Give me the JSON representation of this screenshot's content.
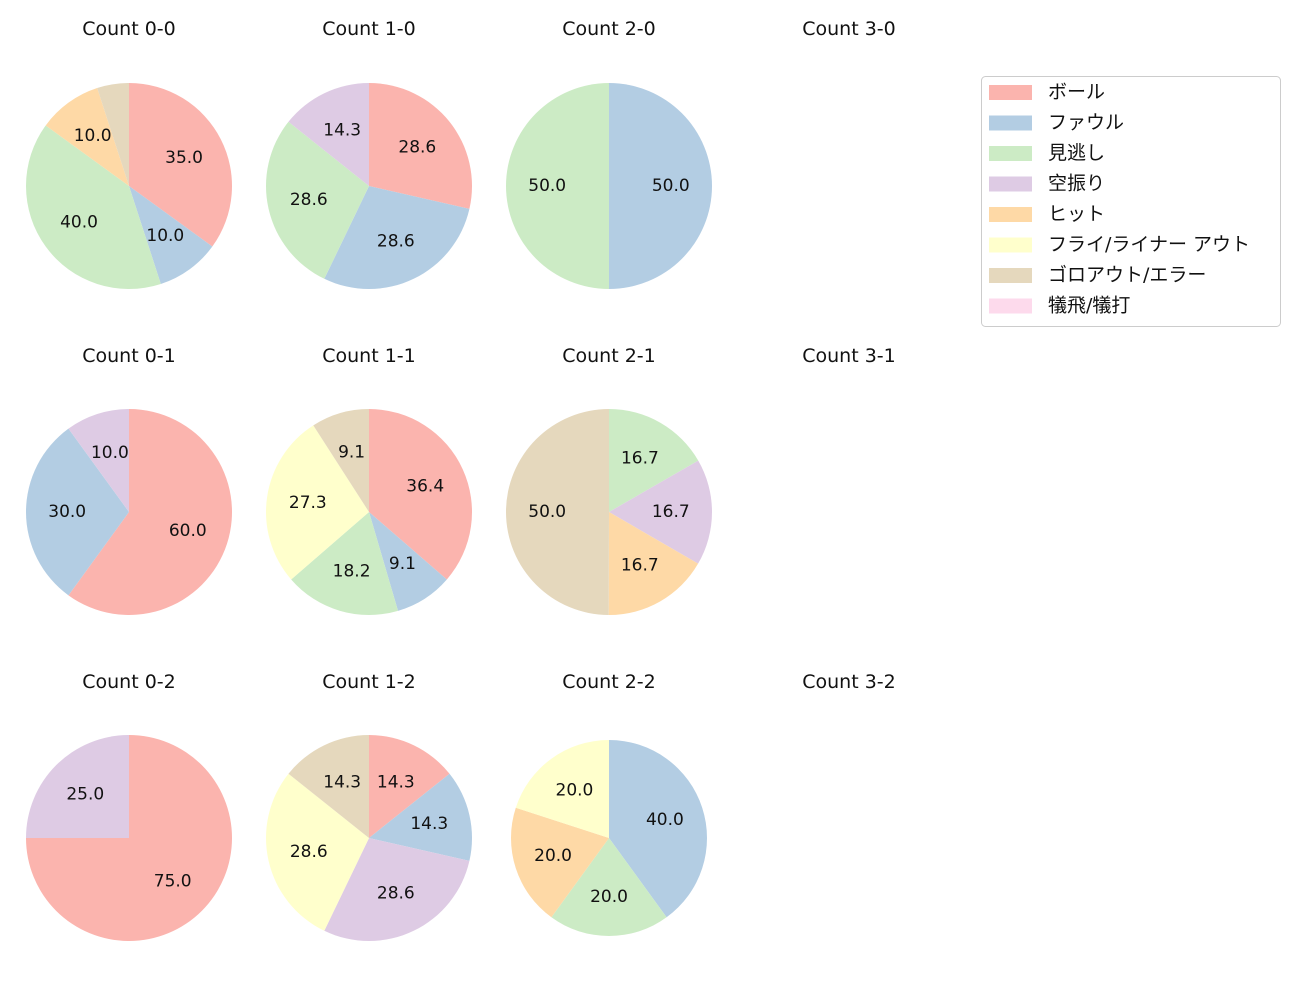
{
  "chart_data": {
    "type": "pie",
    "categories": [
      "ボール",
      "ファウル",
      "見逃し",
      "空振り",
      "ヒット",
      "フライ/ライナー アウト",
      "ゴロアウト/エラー",
      "犠飛/犠打"
    ],
    "colors": [
      "#fbb4ae",
      "#b3cde3",
      "#ccebc5",
      "#decbe4",
      "#fed9a6",
      "#ffffcc",
      "#e5d8bd",
      "#fddaec"
    ],
    "charts": [
      {
        "title": "Count 0-0",
        "values": [
          35.0,
          10.0,
          40.0,
          0,
          10.0,
          0,
          5.0,
          0
        ],
        "labels": [
          "35.0",
          "10.0",
          "40.0",
          "",
          "10.0",
          "",
          "",
          ""
        ]
      },
      {
        "title": "Count 1-0",
        "values": [
          28.6,
          28.6,
          28.6,
          14.3,
          0,
          0,
          0,
          0
        ],
        "labels": [
          "28.6",
          "28.6",
          "28.6",
          "14.3",
          "",
          "",
          "",
          ""
        ]
      },
      {
        "title": "Count 2-0",
        "values": [
          0,
          50.0,
          50.0,
          0,
          0,
          0,
          0,
          0
        ],
        "labels": [
          "",
          "50.0",
          "50.0",
          "",
          "",
          "",
          "",
          ""
        ]
      },
      {
        "title": "Count 3-0",
        "values": [],
        "labels": []
      },
      {
        "title": "Count 0-1",
        "values": [
          60.0,
          30.0,
          0,
          10.0,
          0,
          0,
          0,
          0
        ],
        "labels": [
          "60.0",
          "30.0",
          "",
          "10.0",
          "",
          "",
          "",
          ""
        ]
      },
      {
        "title": "Count 1-1",
        "values": [
          36.4,
          9.1,
          18.2,
          0,
          0,
          27.3,
          9.1,
          0
        ],
        "labels": [
          "36.4",
          "9.1",
          "18.2",
          "",
          "",
          "27.3",
          "9.1",
          ""
        ]
      },
      {
        "title": "Count 2-1",
        "values": [
          0,
          0,
          16.7,
          16.7,
          16.7,
          0,
          50.0,
          0
        ],
        "labels": [
          "",
          "",
          "16.7",
          "16.7",
          "16.7",
          "",
          "50.0",
          ""
        ]
      },
      {
        "title": "Count 3-1",
        "values": [],
        "labels": []
      },
      {
        "title": "Count 0-2",
        "values": [
          75.0,
          0,
          0,
          25.0,
          0,
          0,
          0,
          0
        ],
        "labels": [
          "75.0",
          "",
          "",
          "25.0",
          "",
          "",
          "",
          ""
        ]
      },
      {
        "title": "Count 1-2",
        "values": [
          14.3,
          14.3,
          0,
          28.6,
          0,
          28.6,
          14.3,
          0
        ],
        "labels": [
          "14.3",
          "14.3",
          "",
          "28.6",
          "",
          "28.6",
          "14.3",
          ""
        ]
      },
      {
        "title": "Count 2-2",
        "values": [
          0,
          40.0,
          20.0,
          0,
          20.0,
          20.0,
          0,
          0
        ],
        "labels": [
          "",
          "40.0",
          "20.0",
          "",
          "20.0",
          "20.0",
          "",
          ""
        ]
      },
      {
        "title": "Count 3-2",
        "values": [],
        "labels": []
      }
    ],
    "legend_position": "top-right"
  }
}
